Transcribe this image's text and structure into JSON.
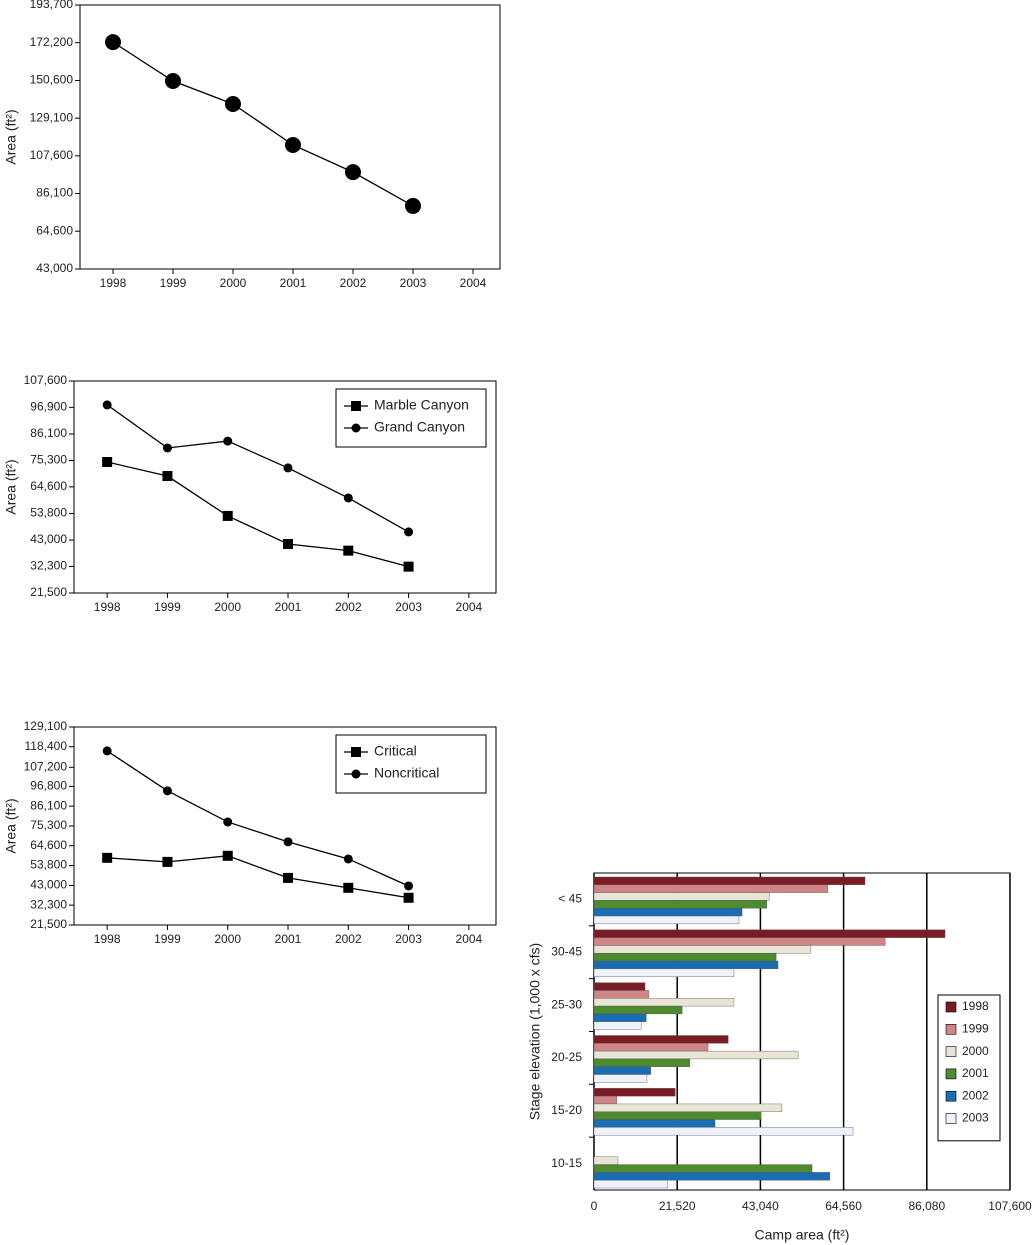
{
  "chart_data": [
    {
      "type": "line",
      "y_label": "Area (ft²)",
      "x": [
        1998,
        1999,
        2000,
        2001,
        2002,
        2003
      ],
      "xlim": [
        1997.45,
        2004.45
      ],
      "xticks": [
        1998,
        1999,
        2000,
        2001,
        2002,
        2003,
        2004
      ],
      "ylim": [
        43000,
        193700
      ],
      "yticks": [
        {
          "value": 43000,
          "label": "43,000"
        },
        {
          "value": 64600,
          "label": "64,600"
        },
        {
          "value": 86100,
          "label": "86,100"
        },
        {
          "value": 107600,
          "label": "107,600"
        },
        {
          "value": 129100,
          "label": "129,100"
        },
        {
          "value": 150600,
          "label": "150,600"
        },
        {
          "value": 172200,
          "label": "172,200"
        },
        {
          "value": 193700,
          "label": "193,700"
        }
      ],
      "series": [
        {
          "color": "#000000",
          "marker": "circle",
          "values": [
            172500,
            150300,
            137200,
            113800,
            98300,
            79000
          ]
        }
      ]
    },
    {
      "type": "line",
      "y_label": "Area (ft²)",
      "legend": "upper right",
      "x": [
        1998,
        1999,
        2000,
        2001,
        2002,
        2003
      ],
      "xlim": [
        1997.45,
        2004.45
      ],
      "xticks": [
        1998,
        1999,
        2000,
        2001,
        2002,
        2003,
        2004
      ],
      "ylim": [
        21500,
        107600
      ],
      "yticks": [
        {
          "value": 21500,
          "label": "21,500"
        },
        {
          "value": 32300,
          "label": "32,300"
        },
        {
          "value": 43000,
          "label": "43,000"
        },
        {
          "value": 53800,
          "label": "53,800"
        },
        {
          "value": 64600,
          "label": "64,600"
        },
        {
          "value": 75300,
          "label": "75,300"
        },
        {
          "value": 86100,
          "label": "86,100"
        },
        {
          "value": 96900,
          "label": "96,900"
        },
        {
          "value": 107600,
          "label": "107,600"
        }
      ],
      "series": [
        {
          "name": "Marble Canyon",
          "color": "#000000",
          "marker": "square",
          "values": [
            74700,
            69000,
            52800,
            41400,
            38700,
            32200
          ]
        },
        {
          "name": "Grand Canyon",
          "color": "#000000",
          "marker": "circle",
          "values": [
            97900,
            80400,
            83200,
            72300,
            60100,
            46300
          ]
        }
      ]
    },
    {
      "type": "line",
      "y_label": "Area (ft²)",
      "legend": "upper right",
      "x": [
        1998,
        1999,
        2000,
        2001,
        2002,
        2003
      ],
      "xlim": [
        1997.45,
        2004.45
      ],
      "xticks": [
        1998,
        1999,
        2000,
        2001,
        2002,
        2003,
        2004
      ],
      "ylim": [
        21500,
        129100
      ],
      "yticks": [
        {
          "value": 21500,
          "label": "21,500"
        },
        {
          "value": 32300,
          "label": "32,300"
        },
        {
          "value": 43000,
          "label": "43,000"
        },
        {
          "value": 53800,
          "label": "53,800"
        },
        {
          "value": 64600,
          "label": "64,600"
        },
        {
          "value": 75300,
          "label": "75,300"
        },
        {
          "value": 86100,
          "label": "86,100"
        },
        {
          "value": 96800,
          "label": "96,800"
        },
        {
          "value": 107200,
          "label": "107,200"
        },
        {
          "value": 118400,
          "label": "118,400"
        },
        {
          "value": 129100,
          "label": "129,100"
        }
      ],
      "series": [
        {
          "name": "Critical",
          "color": "#000000",
          "marker": "square",
          "values": [
            58000,
            55800,
            59100,
            47100,
            41700,
            36300
          ]
        },
        {
          "name": "Noncritical",
          "color": "#000000",
          "marker": "circle",
          "values": [
            116100,
            94400,
            77500,
            66700,
            57400,
            42700
          ]
        }
      ]
    },
    {
      "type": "hbar",
      "x_label": "Camp area (ft²)",
      "y_label": "Stage elevation (1,000 x cfs)",
      "legend": "right",
      "grid": true,
      "categories": [
        "< 45",
        "30-45",
        "25-30",
        "20-25",
        "15-20",
        "10-15"
      ],
      "xlim": [
        0,
        107600
      ],
      "xticks": [
        0,
        {
          "value": 21520,
          "label": "21,520"
        },
        {
          "value": 43040,
          "label": "43,040"
        },
        {
          "value": 64560,
          "label": "64,560"
        },
        {
          "value": 86080,
          "label": "86,080"
        },
        {
          "value": 107600,
          "label": "107,600"
        }
      ],
      "series": [
        {
          "name": "1998",
          "color": "#7b1c24",
          "values": [
            70100,
            90800,
            13200,
            34700,
            21000,
            0
          ]
        },
        {
          "name": "1999",
          "color": "#cf8585",
          "values": [
            60500,
            75300,
            14200,
            29500,
            5900,
            0
          ]
        },
        {
          "name": "2000",
          "color": "#e8e4d6",
          "values": [
            45300,
            56100,
            36200,
            52800,
            48600,
            6200
          ]
        },
        {
          "name": "2001",
          "color": "#4e8a2e",
          "values": [
            44700,
            47100,
            22800,
            24800,
            43200,
            56400
          ]
        },
        {
          "name": "2002",
          "color": "#1a6db3",
          "values": [
            38300,
            47600,
            13500,
            14700,
            31300,
            61000
          ]
        },
        {
          "name": "2003",
          "color": "#eef2fa",
          "values": [
            37500,
            36200,
            12200,
            13700,
            67000,
            19100
          ]
        }
      ]
    }
  ]
}
